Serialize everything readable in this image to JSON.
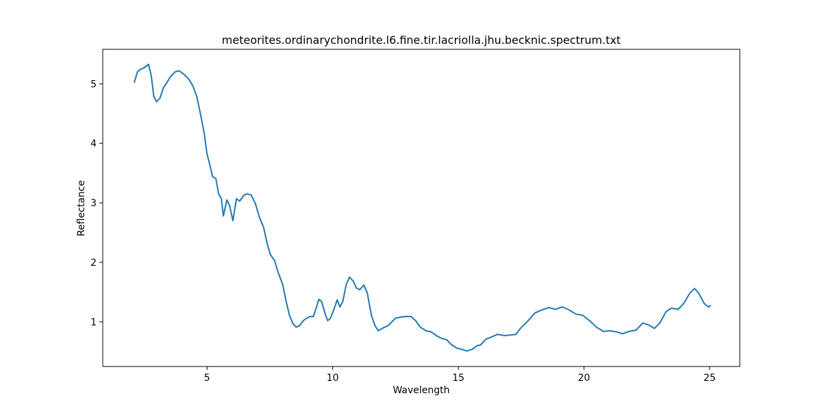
{
  "chart_data": {
    "type": "line",
    "title": "meteorites.ordinarychondrite.l6.fine.tir.lacriolla.jhu.becknic.spectrum.txt",
    "x_label": "Wavelength",
    "y_label": "Reflectance",
    "xlim": [
      0.85,
      26.2
    ],
    "ylim": [
      0.25,
      5.58
    ],
    "xticks": [
      5,
      10,
      15,
      20,
      25
    ],
    "yticks": [
      1,
      2,
      3,
      4,
      5
    ],
    "series": [
      {
        "color": "#1f77b4",
        "x": [
          2.1,
          2.23,
          2.37,
          2.5,
          2.67,
          2.78,
          2.88,
          2.99,
          3.13,
          3.26,
          3.4,
          3.53,
          3.72,
          3.89,
          4.08,
          4.27,
          4.43,
          4.59,
          4.76,
          4.89,
          5.0,
          5.11,
          5.22,
          5.35,
          5.46,
          5.57,
          5.65,
          5.79,
          5.9,
          6.03,
          6.17,
          6.3,
          6.47,
          6.6,
          6.76,
          6.93,
          7.09,
          7.25,
          7.39,
          7.52,
          7.69,
          7.82,
          8.01,
          8.15,
          8.28,
          8.42,
          8.55,
          8.69,
          8.83,
          8.96,
          9.1,
          9.23,
          9.34,
          9.45,
          9.56,
          9.69,
          9.8,
          9.91,
          10.05,
          10.18,
          10.29,
          10.4,
          10.54,
          10.67,
          10.81,
          10.94,
          11.08,
          11.24,
          11.38,
          11.54,
          11.68,
          11.81,
          11.97,
          12.22,
          12.49,
          12.71,
          12.9,
          13.11,
          13.3,
          13.49,
          13.71,
          13.93,
          14.12,
          14.34,
          14.53,
          14.72,
          14.93,
          15.12,
          15.34,
          15.56,
          15.75,
          15.88,
          16.1,
          16.29,
          16.56,
          16.83,
          17.1,
          17.29,
          17.51,
          17.78,
          18.05,
          18.32,
          18.6,
          18.87,
          19.14,
          19.41,
          19.68,
          19.95,
          20.22,
          20.5,
          20.77,
          21.04,
          21.31,
          21.53,
          21.8,
          22.07,
          22.34,
          22.56,
          22.8,
          23.02,
          23.26,
          23.48,
          23.75,
          23.97,
          24.21,
          24.4,
          24.57,
          24.78,
          24.95,
          25.05
        ],
        "values": [
          5.02,
          5.2,
          5.25,
          5.27,
          5.33,
          5.14,
          4.79,
          4.7,
          4.76,
          4.93,
          5.02,
          5.11,
          5.2,
          5.22,
          5.16,
          5.08,
          4.97,
          4.79,
          4.45,
          4.16,
          3.82,
          3.64,
          3.44,
          3.41,
          3.15,
          3.07,
          2.78,
          3.05,
          2.95,
          2.7,
          3.07,
          3.03,
          3.13,
          3.15,
          3.13,
          2.98,
          2.75,
          2.59,
          2.32,
          2.13,
          2.03,
          1.84,
          1.63,
          1.34,
          1.11,
          0.97,
          0.91,
          0.94,
          1.02,
          1.06,
          1.09,
          1.09,
          1.23,
          1.38,
          1.34,
          1.15,
          1.02,
          1.06,
          1.21,
          1.37,
          1.25,
          1.34,
          1.63,
          1.75,
          1.69,
          1.57,
          1.54,
          1.62,
          1.48,
          1.11,
          0.94,
          0.85,
          0.89,
          0.94,
          1.06,
          1.08,
          1.09,
          1.09,
          1.02,
          0.91,
          0.85,
          0.83,
          0.77,
          0.72,
          0.7,
          0.62,
          0.56,
          0.54,
          0.51,
          0.54,
          0.6,
          0.61,
          0.71,
          0.74,
          0.79,
          0.77,
          0.78,
          0.79,
          0.91,
          1.02,
          1.15,
          1.2,
          1.24,
          1.21,
          1.25,
          1.2,
          1.13,
          1.11,
          1.02,
          0.91,
          0.84,
          0.85,
          0.83,
          0.8,
          0.84,
          0.86,
          0.98,
          0.95,
          0.89,
          0.98,
          1.17,
          1.23,
          1.21,
          1.31,
          1.48,
          1.56,
          1.48,
          1.31,
          1.25,
          1.28
        ]
      }
    ]
  }
}
